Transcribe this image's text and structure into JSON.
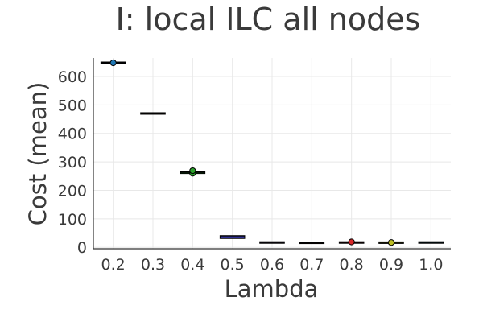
{
  "chart_data": {
    "type": "box",
    "title": "I: local ILC all nodes",
    "xlabel": "Lambda",
    "ylabel": "Cost (mean)",
    "categories": [
      "0.2",
      "0.3",
      "0.4",
      "0.5",
      "0.6",
      "0.7",
      "0.8",
      "0.9",
      "1.0"
    ],
    "yticks": [
      0,
      100,
      200,
      300,
      400,
      500,
      600
    ],
    "ylim": [
      -5,
      665
    ],
    "grid": true,
    "legend": "none",
    "boxes": [
      {
        "category": "0.2",
        "q1": 647,
        "median": 648,
        "q3": 649,
        "color": "#1f77b4",
        "outliers": [
          648
        ]
      },
      {
        "category": "0.3",
        "q1": 469,
        "median": 470,
        "q3": 471,
        "color": "#ff7f0e",
        "outliers": []
      },
      {
        "category": "0.4",
        "q1": 259,
        "median": 263,
        "q3": 266,
        "color": "#2ca02c",
        "outliers": [
          260,
          269
        ]
      },
      {
        "category": "0.5",
        "q1": 31,
        "median": 37,
        "q3": 41,
        "color": "#3f3fbf",
        "outliers": []
      },
      {
        "category": "0.6",
        "q1": 16,
        "median": 17,
        "q3": 18,
        "color": "#9467bd",
        "outliers": []
      },
      {
        "category": "0.7",
        "q1": 15,
        "median": 16,
        "q3": 17,
        "color": "#8c564b",
        "outliers": []
      },
      {
        "category": "0.8",
        "q1": 16,
        "median": 17,
        "q3": 18,
        "color": "#d62728",
        "outliers": [
          19
        ]
      },
      {
        "category": "0.9",
        "q1": 16,
        "median": 17,
        "q3": 17,
        "color": "#bcbd22",
        "outliers": [
          17
        ]
      },
      {
        "category": "1.0",
        "q1": 16,
        "median": 17,
        "q3": 18,
        "color": "#17becf",
        "outliers": []
      }
    ]
  }
}
